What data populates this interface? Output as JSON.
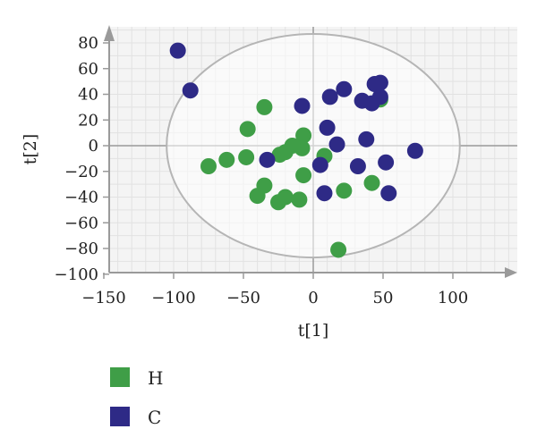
{
  "chart_data": {
    "type": "scatter",
    "xlabel": "t[1]",
    "ylabel": "t[2]",
    "xlim": [
      -150,
      145
    ],
    "ylim": [
      -100,
      95
    ],
    "xticks": [
      "−150",
      "−100",
      "−50",
      "0",
      "50",
      "100"
    ],
    "yticks": [
      "80",
      "60",
      "40",
      "20",
      "0",
      "−20",
      "−40",
      "−60",
      "−80",
      "−100"
    ],
    "grid": true,
    "confidence_ellipse": {
      "center": [
        0,
        0
      ],
      "radius_x": 105,
      "radius_y": 87
    },
    "legend_position": "bottom-left",
    "series": [
      {
        "name": "H",
        "color": "#3f9e47",
        "points": [
          [
            -35,
            30
          ],
          [
            -47,
            13
          ],
          [
            -7,
            8
          ],
          [
            -8,
            -2
          ],
          [
            -15,
            0
          ],
          [
            -24,
            -7
          ],
          [
            -20,
            -5
          ],
          [
            -62,
            -11
          ],
          [
            -48,
            -9
          ],
          [
            -75,
            -16
          ],
          [
            -35,
            -31
          ],
          [
            -40,
            -39
          ],
          [
            -25,
            -44
          ],
          [
            -20,
            -40
          ],
          [
            -10,
            -42
          ],
          [
            -7,
            -23
          ],
          [
            22,
            -35
          ],
          [
            42,
            -29
          ],
          [
            8,
            -8
          ],
          [
            48,
            36
          ],
          [
            18,
            -81
          ]
        ]
      },
      {
        "name": "C",
        "color": "#2e2a86",
        "points": [
          [
            -97,
            74
          ],
          [
            -88,
            43
          ],
          [
            -8,
            31
          ],
          [
            12,
            38
          ],
          [
            22,
            44
          ],
          [
            10,
            14
          ],
          [
            17,
            1
          ],
          [
            -33,
            -11
          ],
          [
            5,
            -15
          ],
          [
            8,
            -37
          ],
          [
            32,
            -16
          ],
          [
            38,
            5
          ],
          [
            35,
            35
          ],
          [
            42,
            33
          ],
          [
            44,
            48
          ],
          [
            48,
            49
          ],
          [
            48,
            38
          ],
          [
            52,
            -13
          ],
          [
            54,
            -37
          ],
          [
            73,
            -4
          ]
        ]
      }
    ]
  }
}
